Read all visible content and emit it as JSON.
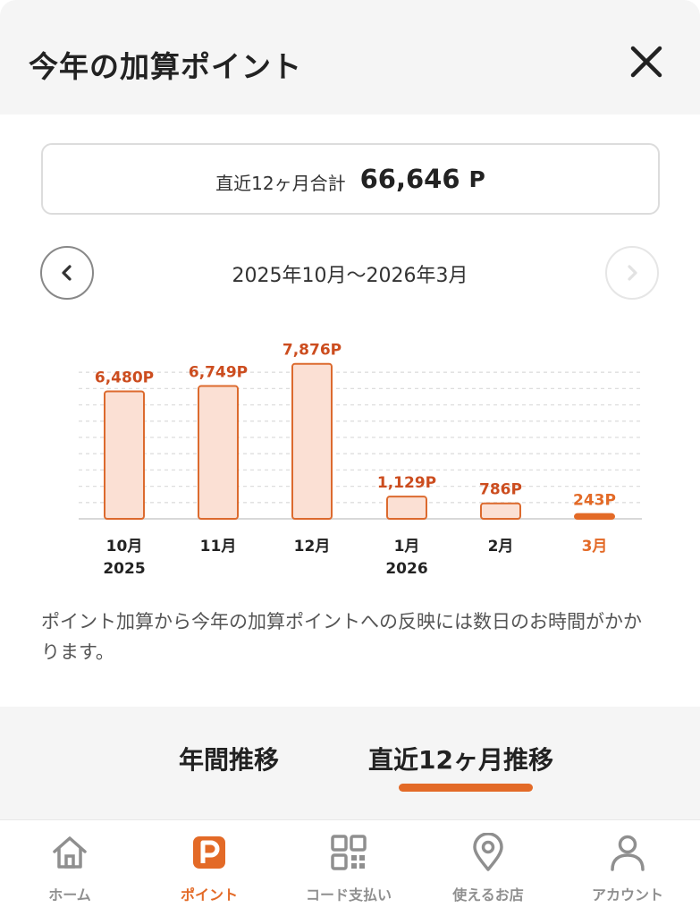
{
  "header": {
    "title": "今年の加算ポイント",
    "close_icon": "close-icon"
  },
  "summary": {
    "label": "直近12ヶ月合計",
    "value": "66,646",
    "unit": "P"
  },
  "period": {
    "label": "2025年10月〜2026年3月",
    "prev_icon": "chevron-left-icon",
    "next_icon": "chevron-right-icon"
  },
  "chart_data": {
    "type": "bar",
    "categories": [
      "10月",
      "11月",
      "12月",
      "1月",
      "2月",
      "3月"
    ],
    "years": [
      "2025",
      "",
      "",
      "2026",
      "",
      ""
    ],
    "values": [
      6480,
      6749,
      7876,
      1129,
      786,
      243
    ],
    "value_labels": [
      "6,480P",
      "6,749P",
      "7,876P",
      "1,129P",
      "786P",
      "243P"
    ],
    "highlight_index": 5,
    "ylim": [
      0,
      8000
    ],
    "grid": true,
    "colors": {
      "bar_fill": "#fbe0d4",
      "bar_stroke": "#dc6a2e",
      "label": "#cc4d1f",
      "highlight_bar": "#e36a27",
      "highlight_label": "#e36a27"
    }
  },
  "note": "ポイント加算から今年の加算ポイントへの反映には数日のお時間がかかります。",
  "tabs": [
    {
      "label": "年間推移",
      "active": false
    },
    {
      "label": "直近12ヶ月推移",
      "active": true
    }
  ],
  "bottom_nav": [
    {
      "label": "ホーム",
      "icon": "home-icon",
      "active": false
    },
    {
      "label": "ポイント",
      "icon": "point-icon",
      "active": true
    },
    {
      "label": "コード支払い",
      "icon": "qr-code-icon",
      "active": false
    },
    {
      "label": "使えるお店",
      "icon": "map-pin-icon",
      "active": false
    },
    {
      "label": "アカウント",
      "icon": "account-icon",
      "active": false
    }
  ],
  "colors": {
    "accent": "#e36a27",
    "inactive": "#8f8f8f",
    "header_bg": "#f5f5f5"
  }
}
